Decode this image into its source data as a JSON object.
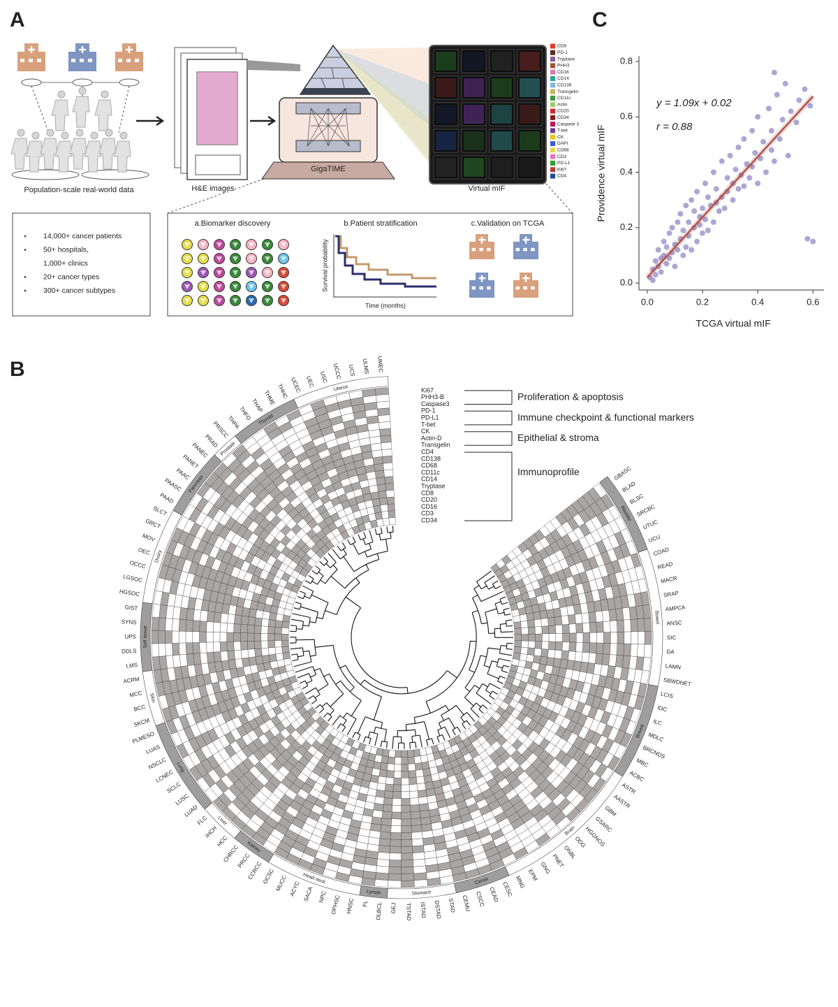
{
  "panel_labels": [
    "A",
    "B",
    "C"
  ],
  "panel_a": {
    "population_label": "Population-scale real-world data",
    "he_label": "H&E images",
    "model_label": "GigaTIME",
    "mif_label": "Virtual mIF",
    "mif_markers": [
      {
        "name": "CD8",
        "color": "#e8382d"
      },
      {
        "name": "PD-1",
        "color": "#5a2e22"
      },
      {
        "name": "Tryptase",
        "color": "#8b5a9c"
      },
      {
        "name": "PHH3",
        "color": "#a0522d"
      },
      {
        "name": "CD16",
        "color": "#e07bb0"
      },
      {
        "name": "CD14",
        "color": "#2aa39a"
      },
      {
        "name": "CD138",
        "color": "#7fb7e0"
      },
      {
        "name": "Transgelin",
        "color": "#c9b458"
      },
      {
        "name": "CD11c",
        "color": "#3a9a3a"
      },
      {
        "name": "Actin",
        "color": "#9ccc65"
      },
      {
        "name": "CD20",
        "color": "#d62728"
      },
      {
        "name": "CD34",
        "color": "#8b1a1a"
      },
      {
        "name": "Caspase 3",
        "color": "#c2185b"
      },
      {
        "name": "T-bet",
        "color": "#6a3d9a"
      },
      {
        "name": "CK",
        "color": "#f0c419"
      },
      {
        "name": "DAPI",
        "color": "#3b5bdb"
      },
      {
        "name": "CD68",
        "color": "#e6d84a"
      },
      {
        "name": "CD3",
        "color": "#e377c2"
      },
      {
        "name": "PD-L1",
        "color": "#2ca02c"
      },
      {
        "name": "Ki67",
        "color": "#c0392b"
      },
      {
        "name": "CD4",
        "color": "#1f4e9c"
      }
    ],
    "stats": [
      "14,000+ cancer patients",
      "50+ hospitals,",
      "1,000+ clinics",
      "20+ cancer types",
      "300+ cancer subtypes"
    ],
    "applications": {
      "biomarker": "a.Biomarker discovery",
      "stratification": "b.Patient stratification",
      "validation": "c.Validation on TCGA",
      "km_ylabel": "Survival probability",
      "km_xlabel": "Time (months)"
    }
  },
  "panel_b": {
    "marker_groups": [
      {
        "label": "Proliferation & apoptosis",
        "markers": [
          "Ki67",
          "PHH3-B",
          "Caspase3"
        ]
      },
      {
        "label": "Immune checkpoint & functional markers",
        "markers": [
          "PD-1",
          "PD-L1",
          "T-bet"
        ]
      },
      {
        "label": "Epithelial & stroma",
        "markers": [
          "CK",
          "Actin-D",
          "Transgelin"
        ]
      },
      {
        "label": "Immunoprofile",
        "markers": [
          "CD4",
          "CD138",
          "CD68",
          "CD11c",
          "CD14",
          "Tryptase",
          "CD8",
          "CD20",
          "CD16",
          "CD3",
          "CD34"
        ]
      }
    ],
    "tissues": [
      {
        "name": "Bladder",
        "subtypes": [
          "GBASC",
          "BLAD",
          "BLSC",
          "SRCBC",
          "UTUC",
          "UCU"
        ]
      },
      {
        "name": "Bowel",
        "subtypes": [
          "COAD",
          "READ",
          "MACR",
          "SRAP",
          "AMPCA",
          "ANSC",
          "SIC",
          "DA",
          "LAMN",
          "SBWDNET"
        ]
      },
      {
        "name": "Breast",
        "subtypes": [
          "LCIS",
          "IDC",
          "ILC",
          "MDLC",
          "BRCNOS",
          "MBC",
          "ACBC"
        ]
      },
      {
        "name": "Brain",
        "subtypes": [
          "ASTR",
          "AASTR",
          "GBM",
          "GSARC",
          "HGGNOS",
          "ODG",
          "ONBL",
          "PNET",
          "GNG",
          "EPM",
          "MNG"
        ]
      },
      {
        "name": "Cervix",
        "subtypes": [
          "CESC",
          "CEAD",
          "CSCC",
          "CEMU"
        ]
      },
      {
        "name": "Stomach",
        "subtypes": [
          "STAD",
          "DSTAD",
          "ISTAD",
          "TSTAD",
          "GEJ"
        ]
      },
      {
        "name": "Lymph",
        "subtypes": [
          "DLBCL",
          "FL"
        ]
      },
      {
        "name": "Head neck",
        "subtypes": [
          "HNSC",
          "OPHSC",
          "NPC",
          "SACA",
          "ACYC",
          "MUCC",
          "OCSC"
        ]
      },
      {
        "name": "Kidney",
        "subtypes": [
          "CCRCC",
          "PRCC",
          "CHRCC"
        ]
      },
      {
        "name": "Liver",
        "subtypes": [
          "HCC",
          "IHCH",
          "FLC"
        ]
      },
      {
        "name": "Lung",
        "subtypes": [
          "LUAD",
          "LUSC",
          "SCLC",
          "LCNEC",
          "NSCLC",
          "LUAS",
          "PLMESO"
        ]
      },
      {
        "name": "Skin",
        "subtypes": [
          "SKCM",
          "BCC",
          "MCC",
          "ACRM"
        ]
      },
      {
        "name": "Soft tissue",
        "subtypes": [
          "LMS",
          "DDLS",
          "UPS",
          "SYNS",
          "GIST"
        ]
      },
      {
        "name": "Ovary",
        "subtypes": [
          "HGSOC",
          "LGSOC",
          "OCCC",
          "OEC",
          "MOV",
          "GRCT",
          "SLCT"
        ]
      },
      {
        "name": "Pancreas",
        "subtypes": [
          "PAAD",
          "PAASC",
          "PAAC",
          "PANET",
          "PANEC"
        ]
      },
      {
        "name": "Prostate",
        "subtypes": [
          "PRAD",
          "PRSCC"
        ]
      },
      {
        "name": "Thyroid",
        "subtypes": [
          "THPA",
          "THFO",
          "THAP",
          "THME",
          "THHC"
        ]
      },
      {
        "name": "Uterus",
        "subtypes": [
          "UCEC",
          "UEC",
          "USC",
          "UCCC",
          "UCS",
          "ULMS",
          "UMEC"
        ]
      }
    ]
  },
  "chart_data": {
    "type": "scatter",
    "x_label": "TCGA virtual mIF",
    "y_label": "Providence virtual mIF",
    "annotations": [
      "y = 1.09x + 0.02",
      "r = 0.88"
    ],
    "color": "#9d98cc",
    "x": [
      0.01,
      0.02,
      0.02,
      0.03,
      0.03,
      0.04,
      0.04,
      0.05,
      0.05,
      0.06,
      0.06,
      0.07,
      0.07,
      0.08,
      0.08,
      0.09,
      0.09,
      0.1,
      0.1,
      0.11,
      0.11,
      0.12,
      0.12,
      0.13,
      0.13,
      0.14,
      0.14,
      0.15,
      0.15,
      0.16,
      0.16,
      0.17,
      0.17,
      0.18,
      0.18,
      0.19,
      0.19,
      0.2,
      0.2,
      0.21,
      0.21,
      0.22,
      0.22,
      0.23,
      0.24,
      0.24,
      0.25,
      0.25,
      0.26,
      0.27,
      0.27,
      0.28,
      0.29,
      0.29,
      0.3,
      0.31,
      0.31,
      0.32,
      0.33,
      0.33,
      0.34,
      0.35,
      0.35,
      0.36,
      0.37,
      0.38,
      0.38,
      0.39,
      0.4,
      0.4,
      0.41,
      0.42,
      0.43,
      0.44,
      0.45,
      0.45,
      0.46,
      0.47,
      0.48,
      0.49,
      0.5,
      0.51,
      0.52,
      0.54,
      0.55,
      0.57,
      0.58,
      0.59,
      0.6,
      0.46
    ],
    "values": [
      0.02,
      0.05,
      0.01,
      0.08,
      0.03,
      0.06,
      0.12,
      0.04,
      0.09,
      0.1,
      0.15,
      0.07,
      0.13,
      0.18,
      0.09,
      0.11,
      0.2,
      0.14,
      0.06,
      0.22,
      0.12,
      0.16,
      0.25,
      0.1,
      0.19,
      0.13,
      0.28,
      0.17,
      0.22,
      0.3,
      0.12,
      0.2,
      0.26,
      0.15,
      0.33,
      0.21,
      0.24,
      0.27,
      0.18,
      0.36,
      0.23,
      0.19,
      0.31,
      0.28,
      0.4,
      0.22,
      0.29,
      0.34,
      0.26,
      0.44,
      0.31,
      0.27,
      0.38,
      0.33,
      0.46,
      0.3,
      0.36,
      0.41,
      0.49,
      0.34,
      0.39,
      0.35,
      0.52,
      0.43,
      0.38,
      0.55,
      0.42,
      0.47,
      0.36,
      0.6,
      0.45,
      0.51,
      0.4,
      0.63,
      0.48,
      0.55,
      0.44,
      0.68,
      0.52,
      0.59,
      0.72,
      0.46,
      0.62,
      0.58,
      0.66,
      0.7,
      0.16,
      0.64,
      0.15,
      0.76
    ],
    "fit": {
      "x": [
        0,
        0.6
      ],
      "values": [
        0.02,
        0.674
      ],
      "color": "#b0504a"
    },
    "xlim": [
      -0.03,
      0.64
    ],
    "ylim": [
      -0.025,
      0.82
    ],
    "xticks": [
      {
        "value": 0,
        "label": "0.0"
      },
      0.2,
      0.4,
      0.6
    ],
    "yticks": [
      {
        "value": 0,
        "label": "0.0"
      },
      0.2,
      0.4,
      0.6,
      0.8
    ]
  }
}
